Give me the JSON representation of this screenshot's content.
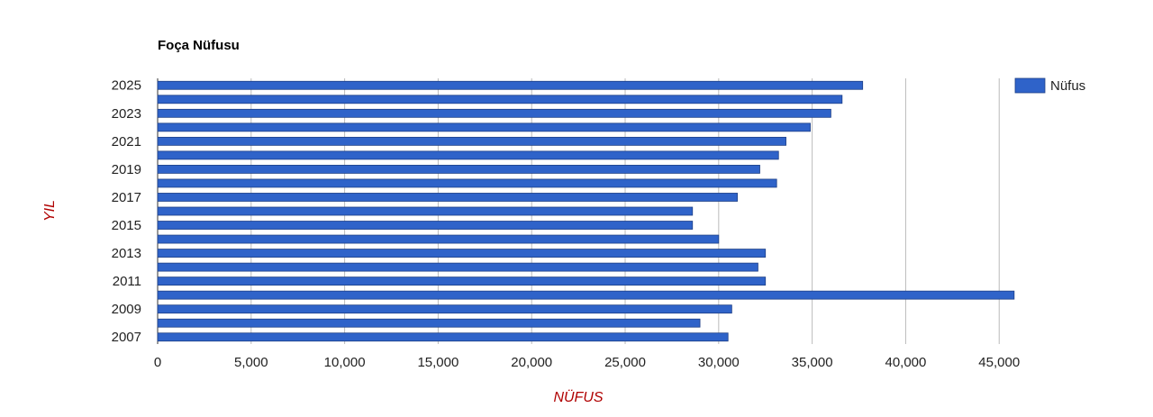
{
  "chart_data": {
    "type": "hbar",
    "title": "Foça Nüfusu",
    "x_label": "NÜFUS",
    "y_label": "YIL",
    "categories": [
      "2025",
      null,
      "2023",
      null,
      "2021",
      null,
      "2019",
      null,
      "2017",
      null,
      "2015",
      null,
      "2013",
      null,
      "2011",
      null,
      "2009",
      null,
      "2007"
    ],
    "series": [
      {
        "name": "Nüfus",
        "color": "#2f63c9",
        "values": [
          37700,
          36600,
          36000,
          34900,
          33600,
          33200,
          32200,
          33100,
          31000,
          28600,
          28600,
          30000,
          32500,
          32100,
          32500,
          45800,
          30700,
          29000,
          30500
        ]
      }
    ],
    "xlim": [
      0,
      46000
    ],
    "xticks": [
      0,
      {
        "value": 5000,
        "label": "5,000"
      },
      {
        "value": 10000,
        "label": "10,000"
      },
      {
        "value": 15000,
        "label": "15,000"
      },
      {
        "value": 20000,
        "label": "20,000"
      },
      {
        "value": 25000,
        "label": "25,000"
      },
      {
        "value": 30000,
        "label": "30,000"
      },
      {
        "value": 35000,
        "label": "35,000"
      },
      {
        "value": 40000,
        "label": "40,000"
      },
      {
        "value": 45000,
        "label": "45,000"
      }
    ],
    "grid": true,
    "legend": "right"
  }
}
